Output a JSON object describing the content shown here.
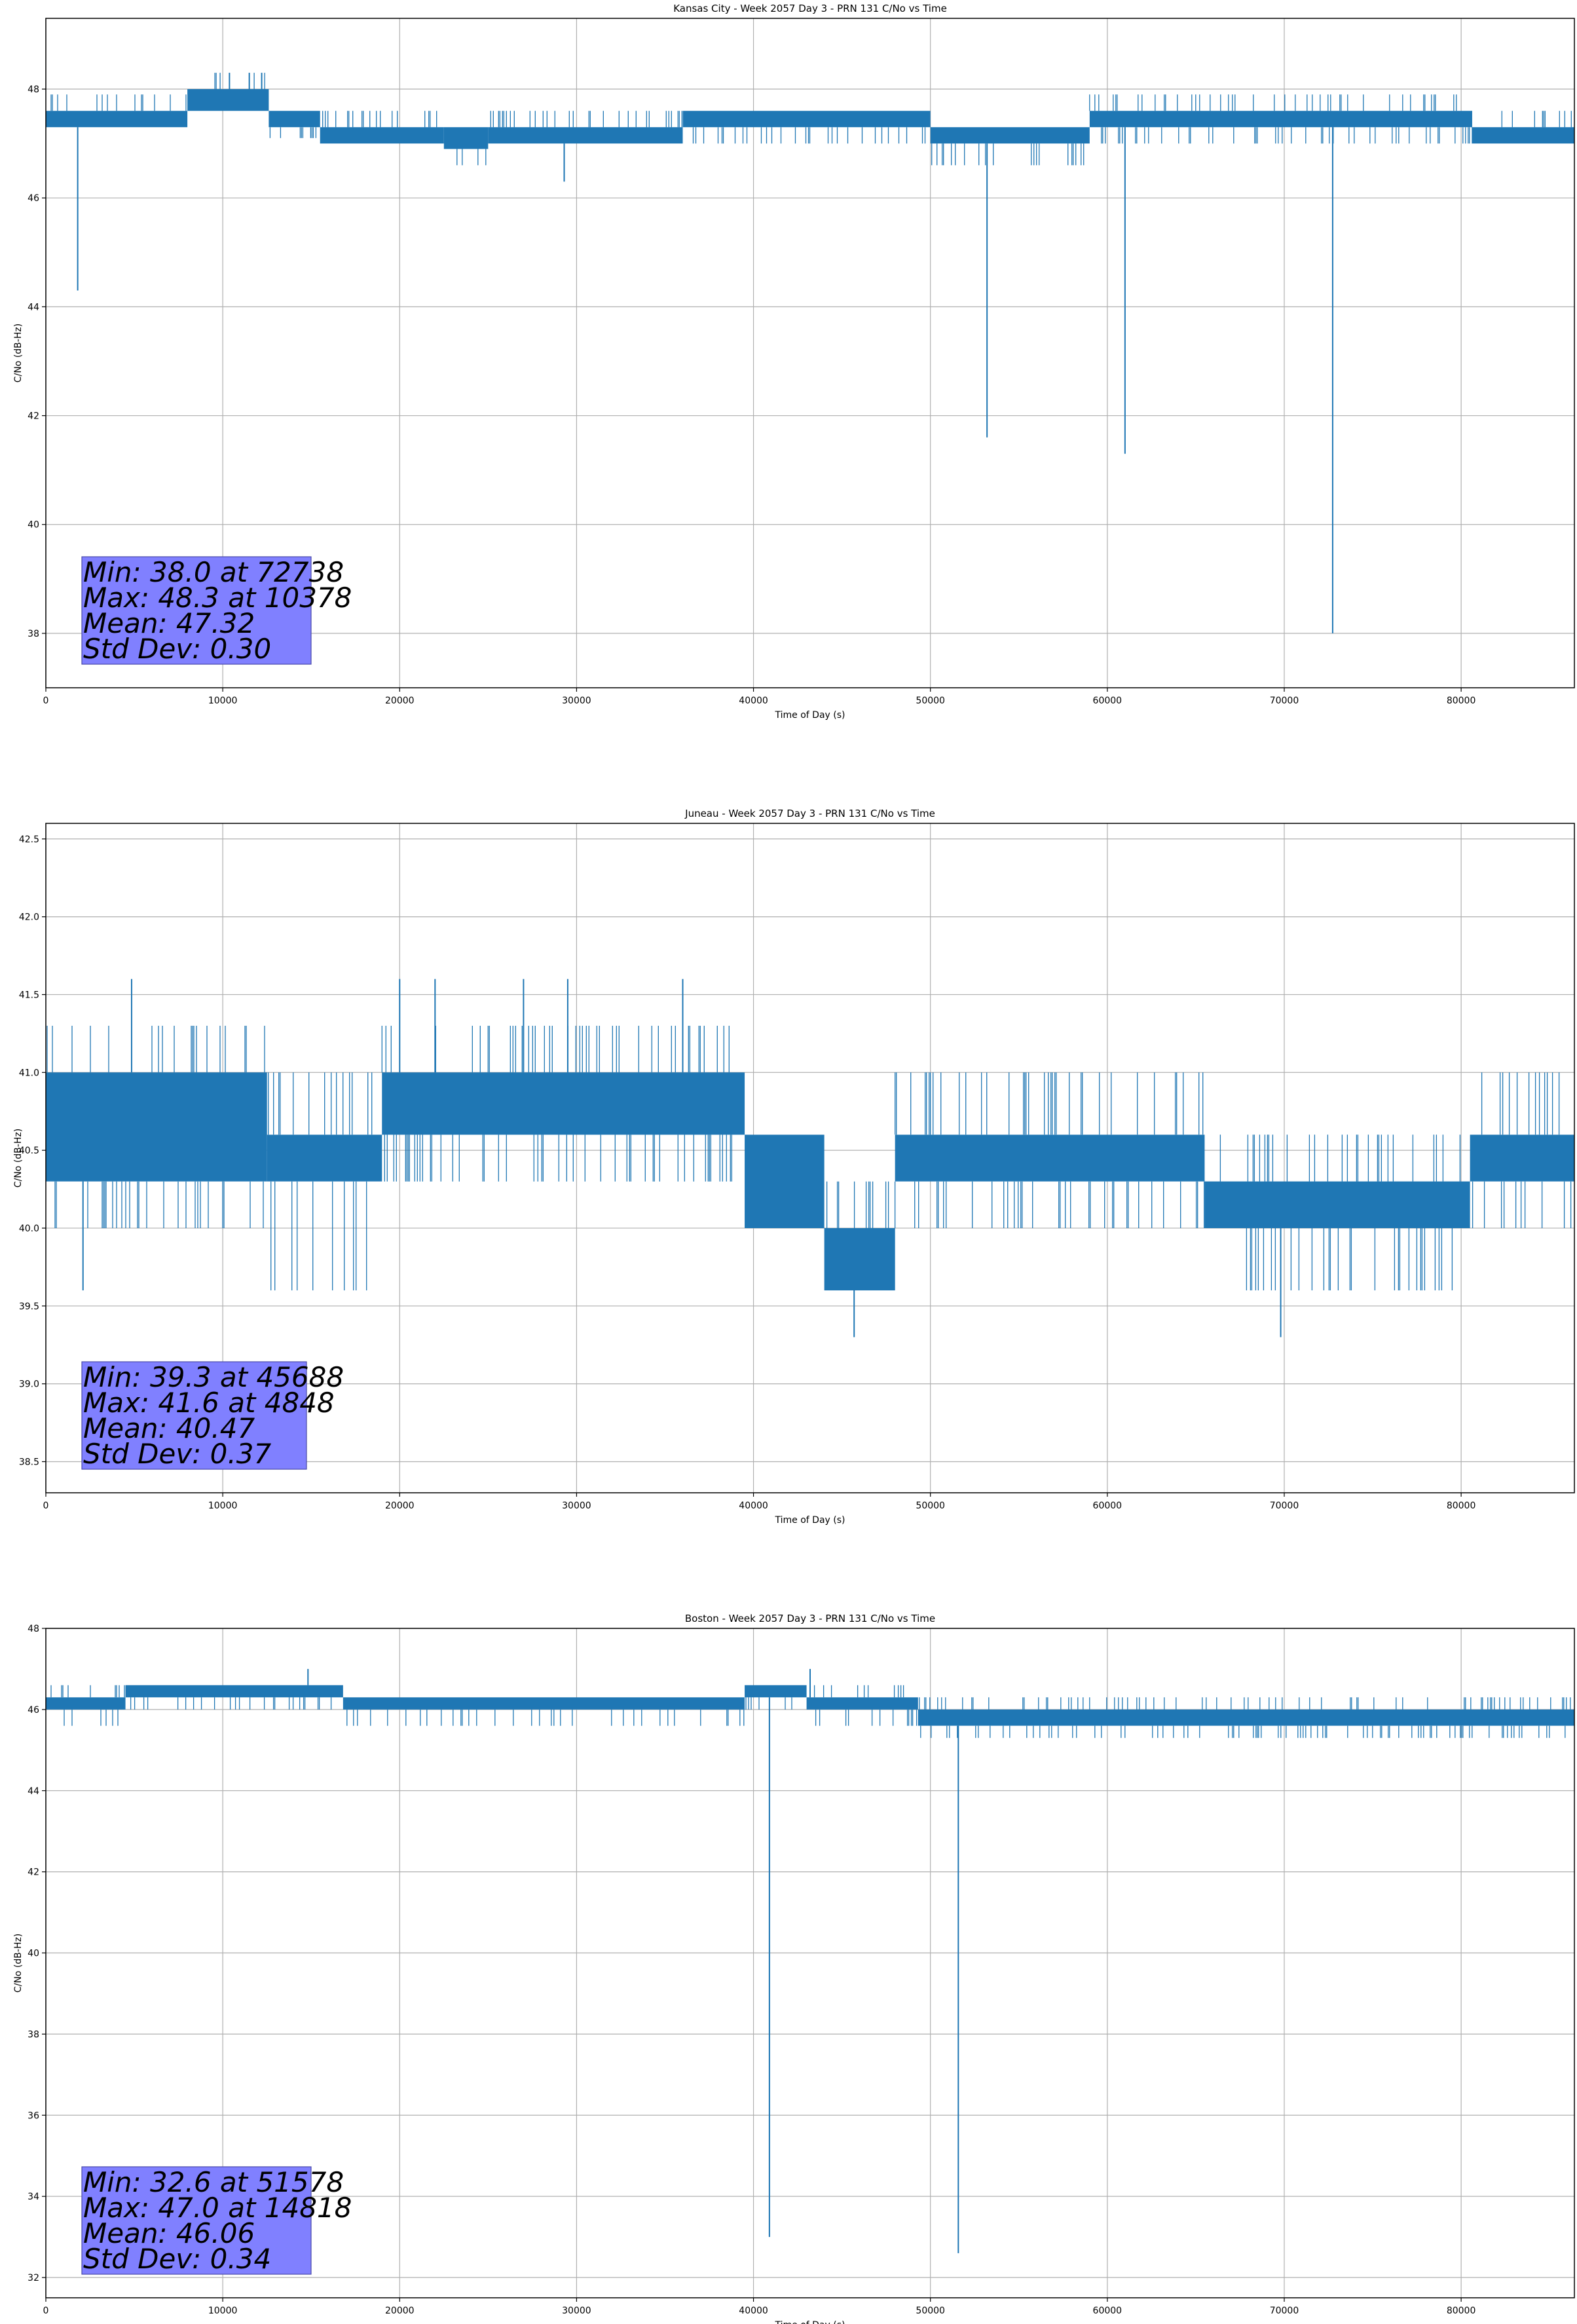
{
  "chart_data": [
    {
      "type": "line",
      "title": "Kansas City - Week 2057 Day 3 - PRN 131 C/No vs Time",
      "xlabel": "Time of Day (s)",
      "ylabel": "C/No (dB-Hz)",
      "xlim": [
        0,
        86400
      ],
      "ylim": [
        37.0,
        49.3
      ],
      "xticks": [
        0,
        10000,
        20000,
        30000,
        40000,
        50000,
        60000,
        70000,
        80000
      ],
      "yticks": [
        38,
        40,
        42,
        44,
        46,
        48
      ],
      "ytick_decimals": 0,
      "grid": true,
      "color": "#1f77b4",
      "bands": [
        {
          "x": [
            0,
            8000
          ],
          "low": 47.3,
          "high": 47.6,
          "noise_low": 47.3,
          "noise_high": 47.9
        },
        {
          "x": [
            8000,
            12600
          ],
          "low": 47.6,
          "high": 48.0,
          "noise_low": 47.6,
          "noise_high": 48.3
        },
        {
          "x": [
            12600,
            15500
          ],
          "low": 47.3,
          "high": 47.6,
          "noise_low": 47.1,
          "noise_high": 47.6
        },
        {
          "x": [
            15500,
            22500
          ],
          "low": 47.0,
          "high": 47.3,
          "noise_low": 47.0,
          "noise_high": 47.6
        },
        {
          "x": [
            22500,
            25000
          ],
          "low": 46.9,
          "high": 47.3,
          "noise_low": 46.6,
          "noise_high": 47.3
        },
        {
          "x": [
            25000,
            36000
          ],
          "low": 47.0,
          "high": 47.3,
          "noise_low": 47.0,
          "noise_high": 47.6
        },
        {
          "x": [
            36000,
            50000
          ],
          "low": 47.3,
          "high": 47.6,
          "noise_low": 47.0,
          "noise_high": 47.6
        },
        {
          "x": [
            50000,
            59000
          ],
          "low": 47.0,
          "high": 47.3,
          "noise_low": 46.6,
          "noise_high": 47.3
        },
        {
          "x": [
            59000,
            80600
          ],
          "low": 47.3,
          "high": 47.6,
          "noise_low": 47.0,
          "noise_high": 47.9
        },
        {
          "x": [
            80600,
            86400
          ],
          "low": 47.0,
          "high": 47.3,
          "noise_low": 47.0,
          "noise_high": 47.6
        }
      ],
      "spikes": [
        [
          1800,
          44.3
        ],
        [
          29300,
          46.3
        ],
        [
          53200,
          41.6
        ],
        [
          61000,
          41.3
        ],
        [
          72738,
          38.0
        ]
      ],
      "peaks": [
        [
          10378,
          48.3
        ],
        [
          11500,
          48.3
        ],
        [
          12200,
          48.3
        ]
      ],
      "stats": [
        "Min: 38.0 at 72738",
        "Max: 48.3 at 10378",
        "Mean: 47.32",
        "Std Dev: 0.30"
      ]
    },
    {
      "type": "line",
      "title": "Juneau - Week 2057 Day 3 - PRN 131 C/No vs Time",
      "xlabel": "Time of Day (s)",
      "ylabel": "C/No (dB-Hz)",
      "xlim": [
        0,
        86400
      ],
      "ylim": [
        38.3,
        42.6
      ],
      "xticks": [
        0,
        10000,
        20000,
        30000,
        40000,
        50000,
        60000,
        70000,
        80000
      ],
      "yticks": [
        38.5,
        39.0,
        39.5,
        40.0,
        40.5,
        41.0,
        41.5,
        42.0,
        42.5
      ],
      "ytick_decimals": 1,
      "grid": true,
      "color": "#1f77b4",
      "bands": [
        {
          "x": [
            0,
            12500
          ],
          "low": 40.3,
          "high": 41.0,
          "noise_low": 40.0,
          "noise_high": 41.3
        },
        {
          "x": [
            12500,
            19000
          ],
          "low": 40.3,
          "high": 40.6,
          "noise_low": 39.6,
          "noise_high": 41.0
        },
        {
          "x": [
            19000,
            39500
          ],
          "low": 40.6,
          "high": 41.0,
          "noise_low": 40.3,
          "noise_high": 41.3
        },
        {
          "x": [
            39500,
            44000
          ],
          "low": 40.0,
          "high": 40.6,
          "noise_low": 40.0,
          "noise_high": 40.6
        },
        {
          "x": [
            44000,
            48000
          ],
          "low": 39.6,
          "high": 40.0,
          "noise_low": 39.6,
          "noise_high": 40.3
        },
        {
          "x": [
            48000,
            65500
          ],
          "low": 40.3,
          "high": 40.6,
          "noise_low": 40.0,
          "noise_high": 41.0
        },
        {
          "x": [
            65500,
            80500
          ],
          "low": 40.0,
          "high": 40.3,
          "noise_low": 39.6,
          "noise_high": 40.6
        },
        {
          "x": [
            80500,
            86400
          ],
          "low": 40.3,
          "high": 40.6,
          "noise_low": 40.0,
          "noise_high": 41.0
        }
      ],
      "spikes": [
        [
          2100,
          39.6
        ],
        [
          45688,
          39.3
        ],
        [
          69800,
          39.3
        ]
      ],
      "peaks": [
        [
          4848,
          41.6
        ],
        [
          20000,
          41.6
        ],
        [
          22000,
          41.6
        ],
        [
          27000,
          41.6
        ],
        [
          29500,
          41.6
        ],
        [
          36000,
          41.6
        ]
      ],
      "stats": [
        "Min: 39.3 at 45688",
        "Max: 41.6 at 4848",
        "Mean: 40.47",
        "Std Dev: 0.37"
      ]
    },
    {
      "type": "line",
      "title": "Boston - Week 2057 Day 3 - PRN 131 C/No vs Time",
      "xlabel": "Time of Day (s)",
      "ylabel": "C/No (dB-Hz)",
      "xlim": [
        0,
        86400
      ],
      "ylim": [
        31.5,
        48.0
      ],
      "xticks": [
        0,
        10000,
        20000,
        30000,
        40000,
        50000,
        60000,
        70000,
        80000
      ],
      "yticks": [
        32,
        34,
        36,
        38,
        40,
        42,
        44,
        46,
        48
      ],
      "ytick_decimals": 0,
      "grid": true,
      "color": "#1f77b4",
      "bands": [
        {
          "x": [
            0,
            4500
          ],
          "low": 46.0,
          "high": 46.3,
          "noise_low": 45.6,
          "noise_high": 46.6
        },
        {
          "x": [
            4500,
            16800
          ],
          "low": 46.3,
          "high": 46.6,
          "noise_low": 46.0,
          "noise_high": 46.6
        },
        {
          "x": [
            16800,
            39500
          ],
          "low": 46.0,
          "high": 46.3,
          "noise_low": 45.6,
          "noise_high": 46.3
        },
        {
          "x": [
            39500,
            43000
          ],
          "low": 46.3,
          "high": 46.6,
          "noise_low": 46.0,
          "noise_high": 46.6
        },
        {
          "x": [
            43000,
            49300
          ],
          "low": 46.0,
          "high": 46.3,
          "noise_low": 45.6,
          "noise_high": 46.6
        },
        {
          "x": [
            49300,
            86400
          ],
          "low": 45.6,
          "high": 46.0,
          "noise_low": 45.3,
          "noise_high": 46.3
        }
      ],
      "spikes": [
        [
          40900,
          33.0
        ],
        [
          51578,
          32.6
        ]
      ],
      "peaks": [
        [
          14818,
          47.0
        ],
        [
          43200,
          47.0
        ]
      ],
      "stats": [
        "Min: 32.6 at 51578",
        "Max: 47.0 at 14818",
        "Mean: 46.06",
        "Std Dev: 0.34"
      ]
    }
  ]
}
